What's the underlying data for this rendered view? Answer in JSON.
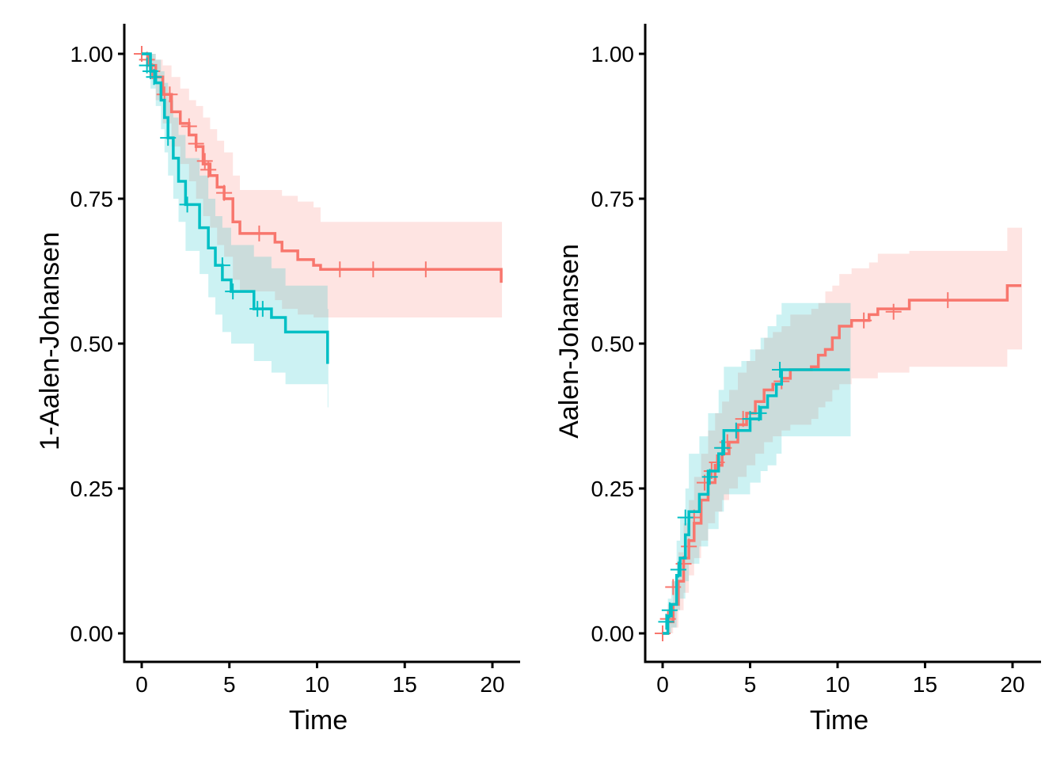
{
  "chart_data": [
    {
      "type": "line",
      "step": true,
      "title": "",
      "xlabel": "Time",
      "ylabel": "1-Aalen-Johansen",
      "xlim": [
        -1,
        21.5
      ],
      "ylim": [
        -0.05,
        1.05
      ],
      "xticks": [
        0,
        5,
        10,
        15,
        20
      ],
      "xtick_labels": [
        "0",
        "5",
        "10",
        "15",
        "20"
      ],
      "yticks": [
        0,
        0.25,
        0.5,
        0.75,
        1.0
      ],
      "ytick_labels": [
        "0.00",
        "0.25",
        "0.50",
        "0.75",
        "1.00"
      ],
      "grid": false,
      "legend": "none",
      "series": [
        {
          "name": "group-1",
          "color": "#F8766D",
          "band_color": "#FFE2E1",
          "x": [
            0,
            0.4,
            0.8,
            1.2,
            1.7,
            2.2,
            2.7,
            3.1,
            3.5,
            3.9,
            4.3,
            4.7,
            5.2,
            5.6,
            7.6,
            8.0,
            8.9,
            9.8,
            10.2,
            20.5
          ],
          "y": [
            1.0,
            0.98,
            0.96,
            0.93,
            0.9,
            0.88,
            0.86,
            0.84,
            0.81,
            0.79,
            0.77,
            0.75,
            0.71,
            0.69,
            0.675,
            0.66,
            0.645,
            0.635,
            0.628,
            0.605
          ],
          "lower": [
            1.0,
            0.96,
            0.92,
            0.88,
            0.84,
            0.81,
            0.78,
            0.75,
            0.72,
            0.7,
            0.67,
            0.65,
            0.61,
            0.59,
            0.575,
            0.56,
            0.55,
            0.545,
            0.545,
            0.545
          ],
          "upper": [
            1.0,
            1.0,
            0.99,
            0.98,
            0.96,
            0.94,
            0.92,
            0.91,
            0.89,
            0.87,
            0.85,
            0.83,
            0.79,
            0.765,
            0.765,
            0.755,
            0.745,
            0.735,
            0.71,
            0.71
          ],
          "censor_x": [
            0,
            0.3,
            0.6,
            1.3,
            1.6,
            2.7,
            3.1,
            3.6,
            3.8,
            4.7,
            6.7,
            11.3,
            13.2,
            16.2
          ],
          "censor_y": [
            1.0,
            0.99,
            0.97,
            0.93,
            0.93,
            0.875,
            0.845,
            0.815,
            0.8,
            0.76,
            0.69,
            0.628,
            0.628,
            0.628
          ]
        },
        {
          "name": "group-2",
          "color": "#00BFC4",
          "band_color": "#CCF1F2",
          "x": [
            0,
            0.5,
            0.8,
            1.1,
            1.3,
            1.5,
            1.8,
            2.1,
            2.5,
            3.3,
            3.8,
            4.2,
            4.6,
            5.1,
            6.4,
            7.4,
            8.2,
            10.6
          ],
          "y": [
            1.0,
            0.97,
            0.95,
            0.92,
            0.89,
            0.855,
            0.82,
            0.78,
            0.74,
            0.7,
            0.665,
            0.635,
            0.61,
            0.59,
            0.56,
            0.545,
            0.52,
            0.465
          ],
          "lower": [
            1.0,
            0.94,
            0.91,
            0.87,
            0.83,
            0.79,
            0.75,
            0.71,
            0.66,
            0.62,
            0.58,
            0.55,
            0.52,
            0.5,
            0.47,
            0.45,
            0.43,
            0.39
          ],
          "upper": [
            1.0,
            1.0,
            0.99,
            0.97,
            0.95,
            0.92,
            0.89,
            0.86,
            0.82,
            0.79,
            0.75,
            0.72,
            0.7,
            0.67,
            0.65,
            0.63,
            0.6,
            0.56
          ],
          "censor_x": [
            0.3,
            0.5,
            0.7,
            1.5,
            2.6,
            4.6,
            5.2,
            6.6,
            6.9
          ],
          "censor_y": [
            0.98,
            0.97,
            0.96,
            0.855,
            0.74,
            0.635,
            0.59,
            0.56,
            0.56
          ]
        }
      ]
    },
    {
      "type": "line",
      "step": true,
      "title": "",
      "xlabel": "Time",
      "ylabel": "Aalen-Johansen",
      "xlim": [
        -1,
        21.5
      ],
      "ylim": [
        -0.05,
        1.05
      ],
      "xticks": [
        0,
        5,
        10,
        15,
        20
      ],
      "xtick_labels": [
        "0",
        "5",
        "10",
        "15",
        "20"
      ],
      "yticks": [
        0,
        0.25,
        0.5,
        0.75,
        1.0
      ],
      "ytick_labels": [
        "0.00",
        "0.25",
        "0.50",
        "0.75",
        "1.00"
      ],
      "grid": false,
      "legend": "none",
      "series": [
        {
          "name": "group-1",
          "color": "#F8766D",
          "band_color": "#FFE2E1",
          "x": [
            0,
            0.3,
            0.6,
            0.9,
            1.2,
            1.5,
            1.8,
            2.2,
            2.6,
            3.0,
            3.4,
            3.8,
            4.3,
            4.8,
            5.3,
            5.8,
            6.3,
            6.8,
            7.3,
            8.5,
            8.9,
            9.3,
            9.7,
            10.1,
            10.8,
            11.8,
            12.3,
            14.1,
            19.7,
            20.5
          ],
          "y": [
            0,
            0.02,
            0.05,
            0.09,
            0.13,
            0.16,
            0.19,
            0.23,
            0.26,
            0.29,
            0.31,
            0.33,
            0.36,
            0.38,
            0.4,
            0.42,
            0.43,
            0.44,
            0.455,
            0.46,
            0.48,
            0.49,
            0.51,
            0.53,
            0.54,
            0.55,
            0.56,
            0.575,
            0.6,
            0.6
          ],
          "lower": [
            0,
            0.0,
            0.01,
            0.04,
            0.07,
            0.1,
            0.13,
            0.16,
            0.19,
            0.21,
            0.23,
            0.25,
            0.27,
            0.29,
            0.31,
            0.33,
            0.34,
            0.35,
            0.36,
            0.37,
            0.39,
            0.4,
            0.42,
            0.43,
            0.44,
            0.44,
            0.45,
            0.46,
            0.49,
            0.49
          ],
          "upper": [
            0,
            0.05,
            0.09,
            0.14,
            0.19,
            0.23,
            0.27,
            0.31,
            0.35,
            0.38,
            0.4,
            0.42,
            0.45,
            0.47,
            0.49,
            0.51,
            0.52,
            0.53,
            0.55,
            0.56,
            0.57,
            0.59,
            0.6,
            0.62,
            0.63,
            0.64,
            0.655,
            0.66,
            0.7,
            0.7
          ],
          "censor_x": [
            0,
            0.3,
            0.6,
            0.9,
            1.2,
            1.5,
            1.8,
            2.4,
            2.8,
            3.1,
            3.5,
            3.7,
            4.6,
            6.8,
            11.5,
            13.2,
            16.3
          ],
          "censor_y": [
            0,
            0.025,
            0.08,
            0.11,
            0.12,
            0.15,
            0.2,
            0.26,
            0.28,
            0.295,
            0.32,
            0.33,
            0.37,
            0.435,
            0.54,
            0.555,
            0.575
          ]
        },
        {
          "name": "group-2",
          "color": "#00BFC4",
          "band_color": "#CCF1F2",
          "x": [
            0,
            0.3,
            0.5,
            0.8,
            1.0,
            1.3,
            1.5,
            2.1,
            2.6,
            3.2,
            3.5,
            4.5,
            5.0,
            5.6,
            6.0,
            6.5,
            6.8,
            10.7
          ],
          "y": [
            0,
            0.03,
            0.05,
            0.1,
            0.13,
            0.17,
            0.21,
            0.24,
            0.28,
            0.31,
            0.35,
            0.35,
            0.37,
            0.39,
            0.41,
            0.43,
            0.455,
            0.455
          ],
          "lower": [
            0,
            0.0,
            0.01,
            0.04,
            0.06,
            0.09,
            0.12,
            0.15,
            0.18,
            0.21,
            0.24,
            0.24,
            0.26,
            0.28,
            0.29,
            0.31,
            0.34,
            0.34
          ],
          "upper": [
            0,
            0.06,
            0.09,
            0.16,
            0.2,
            0.25,
            0.31,
            0.34,
            0.38,
            0.42,
            0.46,
            0.47,
            0.49,
            0.51,
            0.53,
            0.55,
            0.57,
            0.57
          ],
          "censor_x": [
            0.2,
            0.4,
            0.9,
            1.3,
            2.7,
            3.4,
            4.2,
            5.0,
            5.5,
            6.7
          ],
          "censor_y": [
            0.02,
            0.04,
            0.11,
            0.2,
            0.27,
            0.32,
            0.35,
            0.37,
            0.38,
            0.455
          ]
        }
      ]
    }
  ]
}
